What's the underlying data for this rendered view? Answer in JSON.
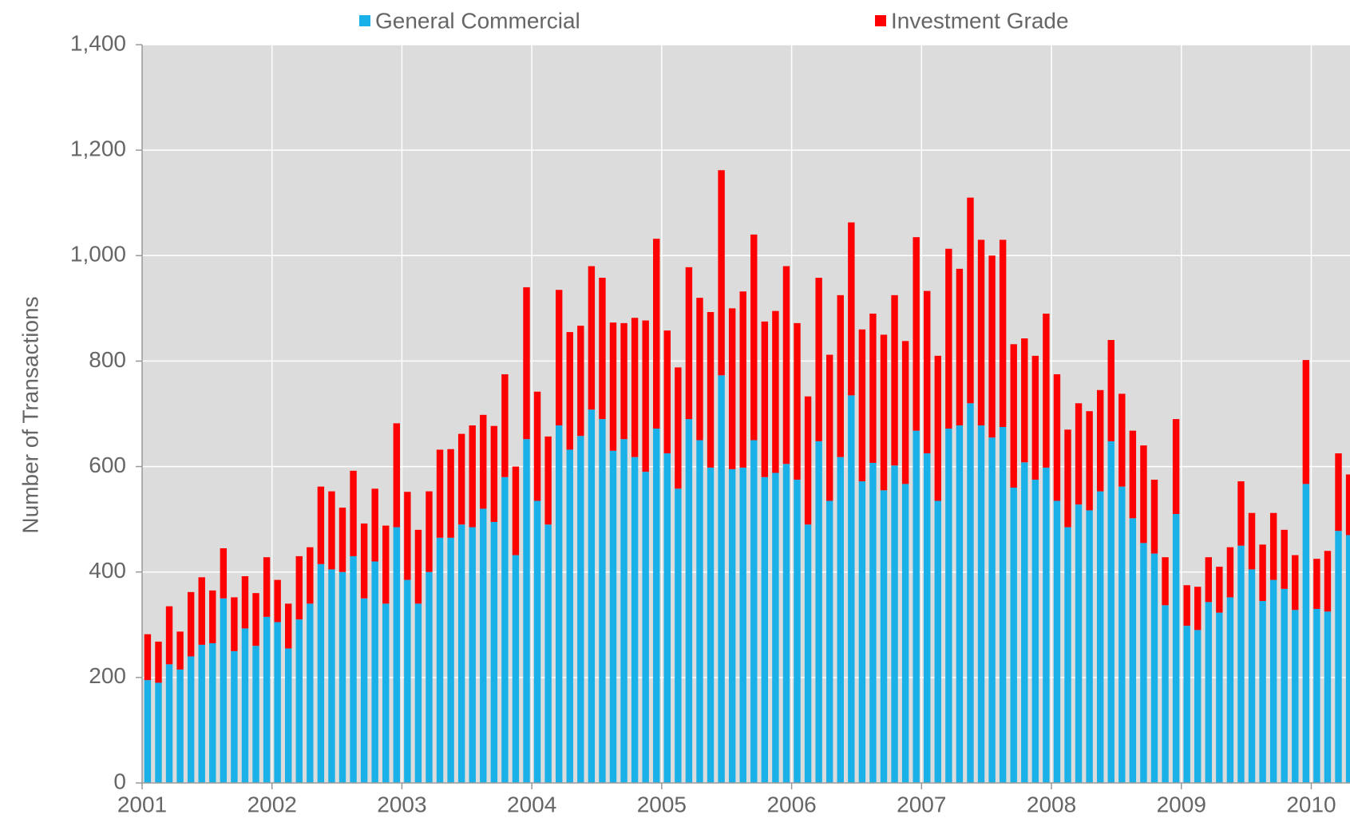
{
  "chart_data": {
    "type": "stacked_bar",
    "y_axis_label": "Number of Transactions",
    "categories": [
      "2001",
      null,
      null,
      null,
      null,
      null,
      null,
      null,
      null,
      null,
      null,
      null,
      "2002",
      null,
      null,
      null,
      null,
      null,
      null,
      null,
      null,
      null,
      null,
      null,
      "2003",
      null,
      null,
      null,
      null,
      null,
      null,
      null,
      null,
      null,
      null,
      null,
      "2004",
      null,
      null,
      null,
      null,
      null,
      null,
      null,
      null,
      null,
      null,
      null,
      "2005",
      null,
      null,
      null,
      null,
      null,
      null,
      null,
      null,
      null,
      null,
      null,
      "2006",
      null,
      null,
      null,
      null,
      null,
      null,
      null,
      null,
      null,
      null,
      null,
      "2007",
      null,
      null,
      null,
      null,
      null,
      null,
      null,
      null,
      null,
      null,
      null,
      "2008",
      null,
      null,
      null,
      null,
      null,
      null,
      null,
      null,
      null,
      null,
      null,
      "2009",
      null,
      null,
      null,
      null,
      null,
      null,
      null,
      null,
      null,
      null,
      null,
      "2010",
      null,
      null,
      null
    ],
    "series": [
      {
        "name": "General Commercial",
        "color": "#1ab0e8",
        "values": [
          195,
          190,
          225,
          215,
          240,
          262,
          265,
          350,
          250,
          293,
          260,
          315,
          305,
          255,
          310,
          340,
          415,
          405,
          400,
          430,
          350,
          420,
          340,
          485,
          385,
          340,
          400,
          465,
          465,
          490,
          485,
          520,
          495,
          580,
          432,
          652,
          535,
          490,
          678,
          632,
          658,
          708,
          690,
          630,
          652,
          618,
          590,
          672,
          625,
          558,
          690,
          650,
          598,
          773,
          595,
          598,
          650,
          580,
          588,
          605,
          575,
          490,
          648,
          535,
          618,
          735,
          572,
          607,
          555,
          602,
          567,
          668,
          625,
          535,
          672,
          678,
          720,
          678,
          655,
          675,
          560,
          608,
          575,
          598,
          535,
          485,
          528,
          517,
          553,
          648,
          562,
          502,
          455,
          435,
          337,
          510,
          298,
          290,
          343,
          323,
          352,
          450,
          405,
          345,
          385,
          368,
          328,
          567,
          330,
          325,
          478,
          470
        ]
      },
      {
        "name": "Investment Grade",
        "color": "#ff0000",
        "values": [
          87,
          78,
          110,
          72,
          122,
          128,
          100,
          95,
          102,
          99,
          100,
          113,
          80,
          85,
          120,
          107,
          147,
          148,
          122,
          162,
          142,
          138,
          148,
          197,
          167,
          140,
          153,
          167,
          168,
          172,
          193,
          178,
          182,
          195,
          168,
          288,
          207,
          167,
          257,
          223,
          209,
          272,
          268,
          243,
          220,
          264,
          287,
          360,
          233,
          230,
          288,
          270,
          295,
          389,
          305,
          334,
          390,
          295,
          307,
          375,
          297,
          243,
          310,
          277,
          307,
          328,
          288,
          283,
          295,
          323,
          271,
          367,
          308,
          275,
          341,
          297,
          390,
          352,
          345,
          355,
          272,
          235,
          235,
          292,
          240,
          185,
          192,
          188,
          192,
          192,
          176,
          166,
          185,
          140,
          91,
          180,
          77,
          82,
          85,
          87,
          95,
          122,
          107,
          107,
          127,
          112,
          104,
          235,
          95,
          115,
          147,
          115
        ]
      }
    ],
    "ylim": [
      0,
      1400
    ],
    "yticks": [
      0,
      200,
      400,
      600,
      800,
      {
        "value": 1000,
        "label": "1,000"
      },
      {
        "value": 1200,
        "label": "1,200"
      },
      {
        "value": 1400,
        "label": "1,400"
      }
    ],
    "grid": true,
    "legend": "top"
  }
}
